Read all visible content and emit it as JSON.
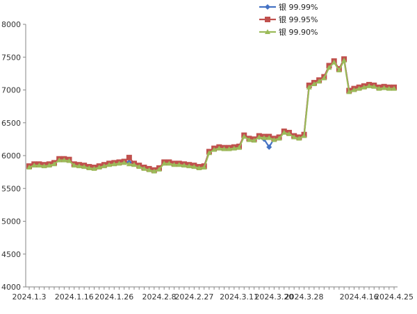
{
  "chart_data": {
    "type": "line",
    "x": [
      "2024.1.3",
      "2024.1.4",
      "2024.1.5",
      "2024.1.8",
      "2024.1.9",
      "2024.1.10",
      "2024.1.11",
      "2024.1.12",
      "2024.1.15",
      "2024.1.16",
      "2024.1.17",
      "2024.1.18",
      "2024.1.19",
      "2024.1.22",
      "2024.1.23",
      "2024.1.24",
      "2024.1.25",
      "2024.1.26",
      "2024.1.29",
      "2024.1.30",
      "2024.1.31",
      "2024.2.1",
      "2024.2.2",
      "2024.2.5",
      "2024.2.6",
      "2024.2.7",
      "2024.2.8",
      "2024.2.19",
      "2024.2.20",
      "2024.2.21",
      "2024.2.22",
      "2024.2.23",
      "2024.2.26",
      "2024.2.27",
      "2024.2.28",
      "2024.2.29",
      "2024.3.1",
      "2024.3.4",
      "2024.3.5",
      "2024.3.6",
      "2024.3.7",
      "2024.3.8",
      "2024.3.11",
      "2024.3.12",
      "2024.3.13",
      "2024.3.14",
      "2024.3.15",
      "2024.3.18",
      "2024.3.19",
      "2024.3.20",
      "2024.3.21",
      "2024.3.22",
      "2024.3.25",
      "2024.3.26",
      "2024.3.27",
      "2024.3.28",
      "2024.3.29",
      "2024.4.1",
      "2024.4.2",
      "2024.4.3",
      "2024.4.8",
      "2024.4.9",
      "2024.4.10",
      "2024.4.11",
      "2024.4.12",
      "2024.4.15",
      "2024.4.16",
      "2024.4.17",
      "2024.4.18",
      "2024.4.19",
      "2024.4.22",
      "2024.4.23",
      "2024.4.24",
      "2024.4.25"
    ],
    "x_tick_labels": [
      "2024.1.3",
      "2024.1.16",
      "2024.1.26",
      "2024.2.8",
      "2024.2.27",
      "2024.3.11",
      "2024.3.20",
      "2024.3.28",
      "2024.4.16",
      "2024.4.25"
    ],
    "ylim": [
      4000,
      8000
    ],
    "y_ticks": [
      4000,
      4500,
      5000,
      5500,
      6000,
      6500,
      7000,
      7500,
      8000
    ],
    "grid": false,
    "legend_position": "top-right",
    "series": [
      {
        "name": "银 99.99%",
        "color": "#4472C4",
        "marker": "diamond",
        "values": [
          5840,
          5870,
          5870,
          5860,
          5870,
          5890,
          5940,
          5950,
          5940,
          5870,
          5860,
          5850,
          5830,
          5820,
          5840,
          5860,
          5880,
          5890,
          5900,
          5910,
          5900,
          5880,
          5850,
          5820,
          5800,
          5780,
          5810,
          5890,
          5900,
          5880,
          5880,
          5870,
          5860,
          5850,
          5830,
          5840,
          6060,
          6110,
          6130,
          6120,
          6120,
          6130,
          6140,
          6300,
          6260,
          6250,
          6280,
          6250,
          6130,
          6260,
          6280,
          6370,
          6350,
          6300,
          6280,
          6320,
          7060,
          7110,
          7150,
          7200,
          7360,
          7430,
          7320,
          7470,
          6990,
          7020,
          7040,
          7060,
          7080,
          7070,
          7040,
          7050,
          7040,
          7030
        ]
      },
      {
        "name": "银 99.95%",
        "color": "#C0504D",
        "marker": "square",
        "values": [
          5840,
          5870,
          5870,
          5860,
          5870,
          5890,
          5950,
          5950,
          5940,
          5870,
          5860,
          5850,
          5830,
          5820,
          5840,
          5860,
          5880,
          5890,
          5900,
          5910,
          5970,
          5880,
          5850,
          5820,
          5800,
          5780,
          5810,
          5900,
          5900,
          5880,
          5880,
          5870,
          5860,
          5850,
          5830,
          5840,
          6060,
          6110,
          6130,
          6120,
          6120,
          6130,
          6140,
          6310,
          6260,
          6250,
          6300,
          6290,
          6290,
          6260,
          6280,
          6370,
          6350,
          6300,
          6280,
          6320,
          7070,
          7110,
          7150,
          7200,
          7370,
          7440,
          7320,
          7470,
          6990,
          7020,
          7040,
          7060,
          7080,
          7070,
          7040,
          7050,
          7040,
          7040
        ]
      },
      {
        "name": "银 99.90%",
        "color": "#9BBB59",
        "marker": "triangle",
        "values": [
          5820,
          5850,
          5850,
          5840,
          5850,
          5870,
          5930,
          5930,
          5920,
          5850,
          5840,
          5830,
          5810,
          5800,
          5820,
          5840,
          5860,
          5870,
          5880,
          5890,
          5870,
          5860,
          5830,
          5800,
          5780,
          5760,
          5790,
          5880,
          5880,
          5860,
          5860,
          5850,
          5840,
          5830,
          5810,
          5820,
          6040,
          6090,
          6110,
          6100,
          6100,
          6110,
          6120,
          6290,
          6240,
          6230,
          6280,
          6270,
          6270,
          6240,
          6260,
          6350,
          6330,
          6280,
          6260,
          6300,
          7040,
          7090,
          7130,
          7180,
          7340,
          7420,
          7300,
          7450,
          6970,
          7000,
          7020,
          7040,
          7060,
          7050,
          7020,
          7030,
          7020,
          7020
        ]
      }
    ]
  }
}
